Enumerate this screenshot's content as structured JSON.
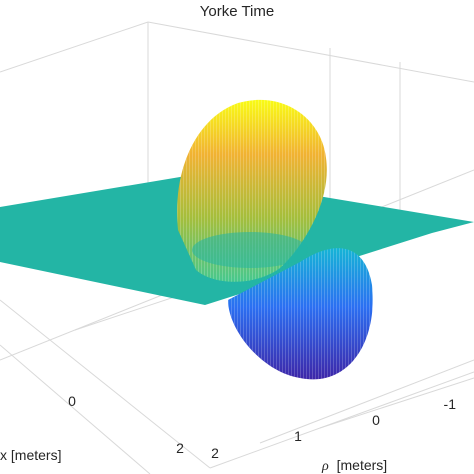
{
  "chart_data": {
    "type": "surface",
    "title": "Yorke Time",
    "xlabel": "x [meters]",
    "ylabel_symbol": "ρ",
    "ylabel_unit": "[meters]",
    "x_ticks": [
      "0",
      "2"
    ],
    "y_ticks": [
      "2",
      "1",
      "0",
      "-1"
    ],
    "x_range": [
      -2,
      2
    ],
    "y_range": [
      -2,
      2
    ],
    "colormap": [
      "#3d26a8",
      "#2b6ff2",
      "#15b4d6",
      "#46c88e",
      "#a4be3b",
      "#f1b232",
      "#f9fb15"
    ],
    "plane_color": "#23b5a5",
    "grid": true,
    "box": true
  }
}
